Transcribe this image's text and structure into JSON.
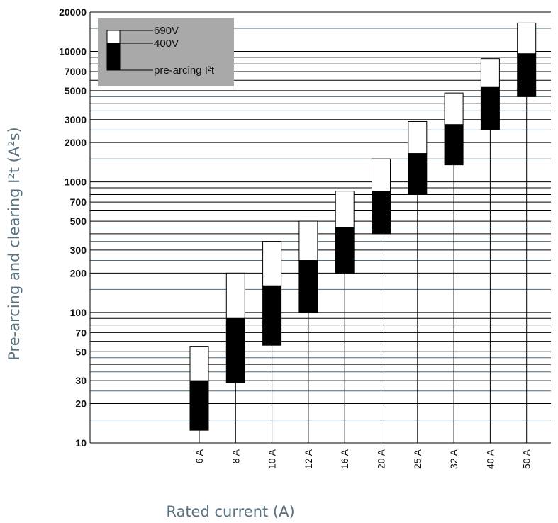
{
  "chart_data": {
    "type": "bar",
    "ylabel": "Pre-arcing and clearing I²t (A²s)",
    "xlabel": "Rated current (A)",
    "yscale": "log",
    "ylim": [
      10,
      20000
    ],
    "yticks": [
      10,
      20,
      30,
      50,
      70,
      100,
      200,
      300,
      500,
      700,
      1000,
      2000,
      3000,
      5000,
      7000,
      10000,
      20000
    ],
    "ytick_labels": [
      "10",
      "20",
      "30",
      "50",
      "70",
      "100",
      "200",
      "300",
      "500",
      "700",
      "1000",
      "2000",
      "3000",
      "5000",
      "7000",
      "10000",
      "20000"
    ],
    "categories": [
      "6 A",
      "8 A",
      "10 A",
      "12 A",
      "16 A",
      "20 A",
      "25 A",
      "32 A",
      "40 A",
      "50 A"
    ],
    "series": [
      {
        "name": "pre-arcing I²t",
        "values": [
          12.5,
          29,
          56,
          100,
          200,
          400,
          800,
          1350,
          2500,
          4500
        ]
      },
      {
        "name": "400V",
        "values": [
          30,
          90,
          160,
          250,
          450,
          850,
          1650,
          2750,
          5300,
          9600
        ]
      },
      {
        "name": "690V",
        "values": [
          55,
          200,
          350,
          500,
          850,
          1500,
          2900,
          4800,
          8800,
          16500
        ]
      }
    ],
    "legend": {
      "position": "top-left",
      "entries": [
        "690V",
        "400V",
        "pre-arcing I²t"
      ]
    },
    "colors": {
      "grid_major": "#000000",
      "grid_minor": "#4d6b78",
      "legend_bg": "#a9a9a9",
      "bar_400": "#000000",
      "bar_690": "#ffffff",
      "axis_title": "#5a7380"
    },
    "grid": true
  }
}
